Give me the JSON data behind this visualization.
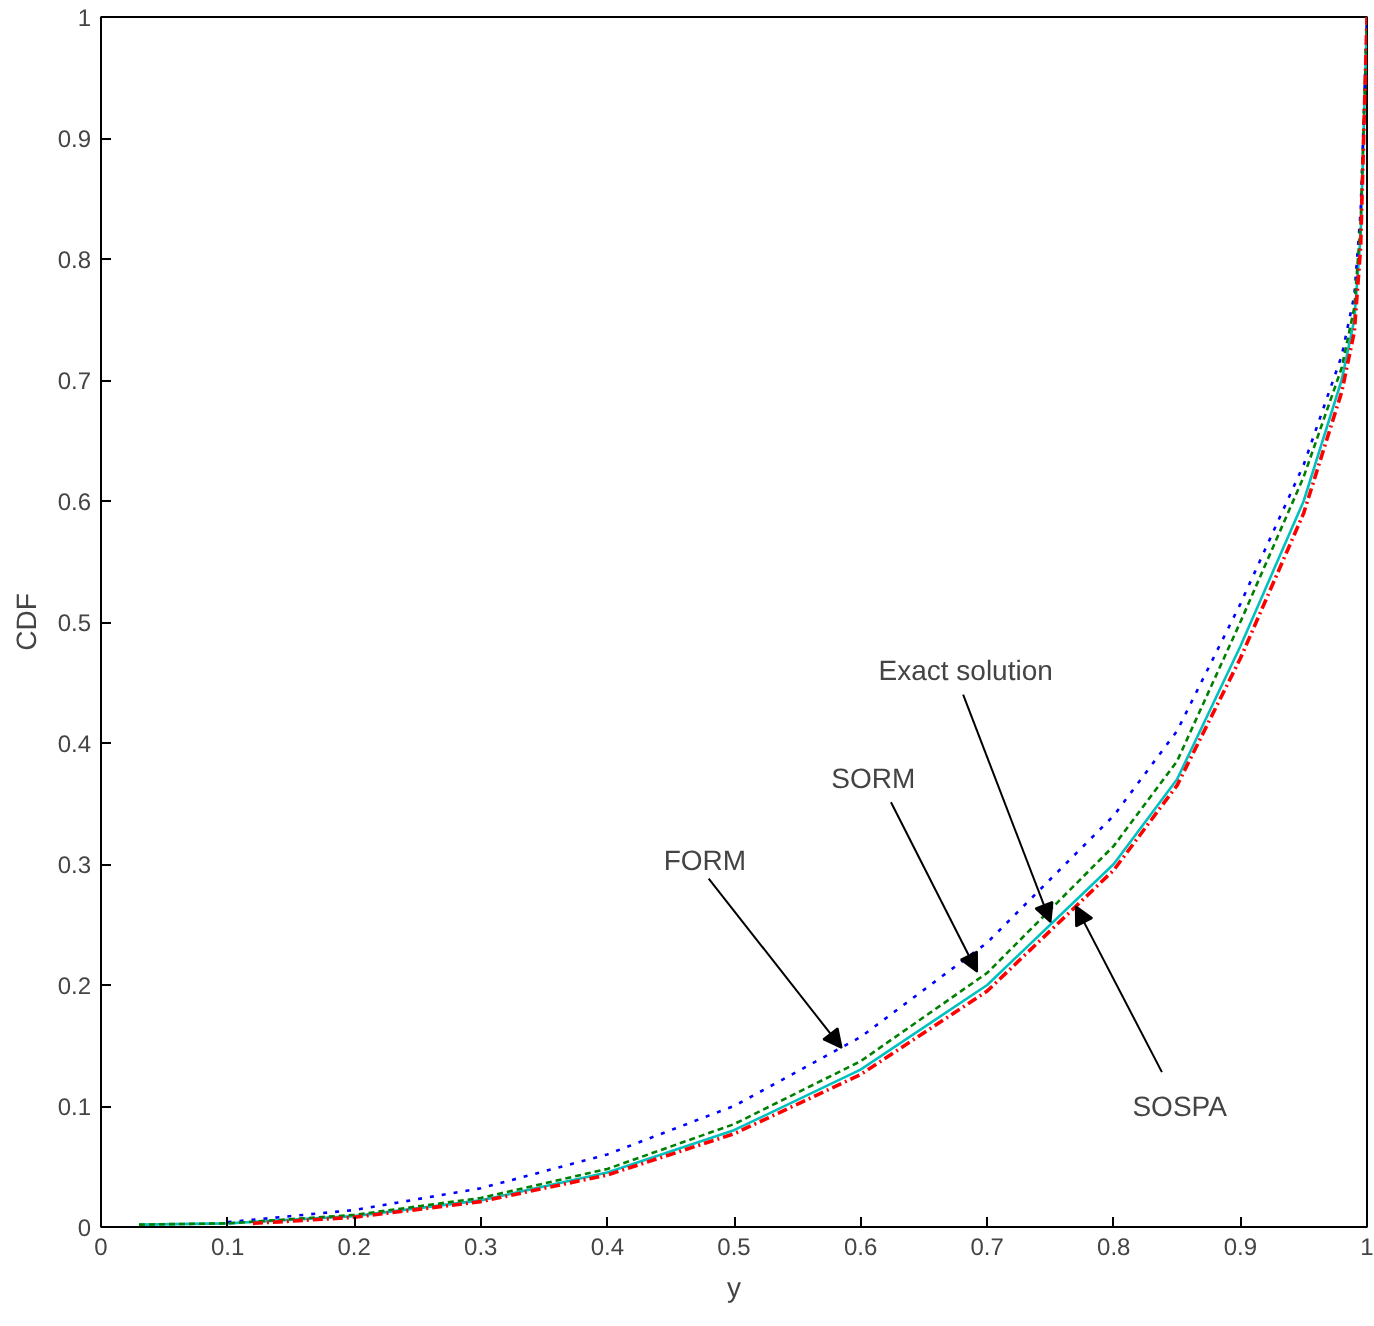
{
  "chart_data": {
    "type": "line",
    "xlabel": "y",
    "ylabel": "CDF",
    "xlim": [
      0,
      1
    ],
    "ylim": [
      0,
      1
    ],
    "xticks": [
      0,
      0.1,
      0.2,
      0.3,
      0.4,
      0.5,
      0.6,
      0.7,
      0.8,
      0.9,
      1
    ],
    "yticks": [
      0,
      0.1,
      0.2,
      0.3,
      0.4,
      0.5,
      0.6,
      0.7,
      0.8,
      0.9,
      1
    ],
    "grid": false,
    "series": [
      {
        "color": "#0000ff",
        "line_style": "dotted",
        "x": [
          0.1,
          0.2,
          0.3,
          0.4,
          0.5,
          0.6,
          0.7,
          0.8,
          0.85,
          0.9,
          0.95,
          0.98,
          0.99,
          0.995,
          1.0
        ],
        "values": [
          0.004,
          0.014,
          0.032,
          0.06,
          0.1,
          0.157,
          0.235,
          0.34,
          0.41,
          0.515,
          0.63,
          0.72,
          0.77,
          0.84,
          1.0
        ]
      },
      {
        "color": "#008000",
        "line_style": "dashed",
        "x": [
          0.03,
          0.1,
          0.2,
          0.3,
          0.4,
          0.5,
          0.6,
          0.7,
          0.8,
          0.85,
          0.9,
          0.95,
          0.98,
          0.99,
          0.995,
          1.0
        ],
        "values": [
          0.002,
          0.003,
          0.01,
          0.024,
          0.048,
          0.085,
          0.137,
          0.21,
          0.315,
          0.385,
          0.5,
          0.62,
          0.71,
          0.76,
          0.83,
          1.0
        ]
      },
      {
        "color": "#00c0c0",
        "line_style": "solid",
        "x": [
          0.03,
          0.1,
          0.2,
          0.3,
          0.4,
          0.5,
          0.6,
          0.7,
          0.8,
          0.85,
          0.9,
          0.95,
          0.98,
          0.99,
          0.995,
          1.0
        ],
        "values": [
          0.002,
          0.003,
          0.009,
          0.022,
          0.045,
          0.08,
          0.13,
          0.2,
          0.3,
          0.37,
          0.48,
          0.6,
          0.7,
          0.75,
          0.82,
          1.0
        ]
      },
      {
        "color": "#ff0000",
        "line_style": "dashdot",
        "x": [
          0.12,
          0.2,
          0.3,
          0.4,
          0.5,
          0.6,
          0.7,
          0.8,
          0.85,
          0.9,
          0.95,
          0.98,
          0.99,
          0.995,
          1.0
        ],
        "values": [
          0.003,
          0.008,
          0.021,
          0.043,
          0.077,
          0.126,
          0.195,
          0.295,
          0.365,
          0.47,
          0.59,
          0.69,
          0.74,
          0.81,
          1.0
        ]
      }
    ],
    "annotations": [
      {
        "text": "FORM",
        "x": 0.585,
        "y": 0.148
      },
      {
        "text": "SORM",
        "x": 0.692,
        "y": 0.211
      },
      {
        "text": "Exact solution",
        "x": 0.75,
        "y": 0.252
      },
      {
        "text": "SOSPA",
        "x": 0.77,
        "y": 0.265
      }
    ]
  }
}
